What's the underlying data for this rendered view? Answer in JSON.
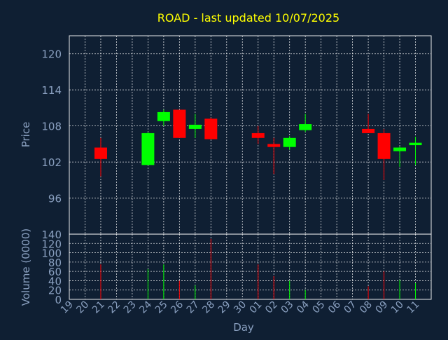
{
  "chart_data": {
    "type": "candlestick",
    "title": "ROAD - last updated 10/07/2025",
    "xlabel": "Day",
    "x_ticks": [
      "19",
      "20",
      "21",
      "22",
      "23",
      "24",
      "25",
      "26",
      "27",
      "28",
      "29",
      "30",
      "01",
      "02",
      "03",
      "04",
      "05",
      "06",
      "07",
      "08",
      "09",
      "10",
      "11"
    ],
    "price": {
      "ylabel": "Price",
      "ylim": [
        90,
        123
      ],
      "yticks": [
        96,
        102,
        108,
        114,
        120
      ],
      "grid": true
    },
    "volume": {
      "ylabel": "Volume (0000)",
      "ylim": [
        0,
        140
      ],
      "yticks": [
        0,
        20,
        40,
        60,
        80,
        100,
        120,
        140
      ],
      "grid": true
    },
    "up_color": "#00ff00",
    "down_color": "#ff0000",
    "candles": [
      {
        "day": "20",
        "open": 104.4,
        "high": 106.0,
        "low": 99.6,
        "close": 102.5,
        "volume": 75
      },
      {
        "day": "23",
        "open": 101.5,
        "high": 107.0,
        "low": 101.5,
        "close": 106.8,
        "volume": 65
      },
      {
        "day": "24",
        "open": 108.8,
        "high": 110.7,
        "low": 108.0,
        "close": 110.3,
        "volume": 75
      },
      {
        "day": "25",
        "open": 110.7,
        "high": 110.7,
        "low": 106.0,
        "close": 106.0,
        "volume": 40
      },
      {
        "day": "26",
        "open": 107.5,
        "high": 110.0,
        "low": 106.0,
        "close": 108.2,
        "volume": 30
      },
      {
        "day": "27",
        "open": 109.2,
        "high": 109.4,
        "low": 105.8,
        "close": 105.8,
        "volume": 130
      },
      {
        "day": "30",
        "open": 106.8,
        "high": 108.0,
        "low": 105.0,
        "close": 106.0,
        "volume": 75
      },
      {
        "day": "01",
        "open": 105.0,
        "high": 106.0,
        "low": 100.0,
        "close": 104.5,
        "volume": 50
      },
      {
        "day": "02",
        "open": 104.5,
        "high": 106.3,
        "low": 104.0,
        "close": 106.0,
        "volume": 40
      },
      {
        "day": "03",
        "open": 107.3,
        "high": 110.0,
        "low": 107.0,
        "close": 108.3,
        "volume": 20
      },
      {
        "day": "07",
        "open": 107.5,
        "high": 110.0,
        "low": 106.8,
        "close": 106.8,
        "volume": 28
      },
      {
        "day": "08",
        "open": 106.8,
        "high": 107.5,
        "low": 99.0,
        "close": 102.5,
        "volume": 60
      },
      {
        "day": "09",
        "open": 103.8,
        "high": 104.6,
        "low": 101.2,
        "close": 104.4,
        "volume": 42
      },
      {
        "day": "10",
        "open": 104.8,
        "high": 106.2,
        "low": 101.5,
        "close": 105.2,
        "volume": 35
      }
    ]
  }
}
